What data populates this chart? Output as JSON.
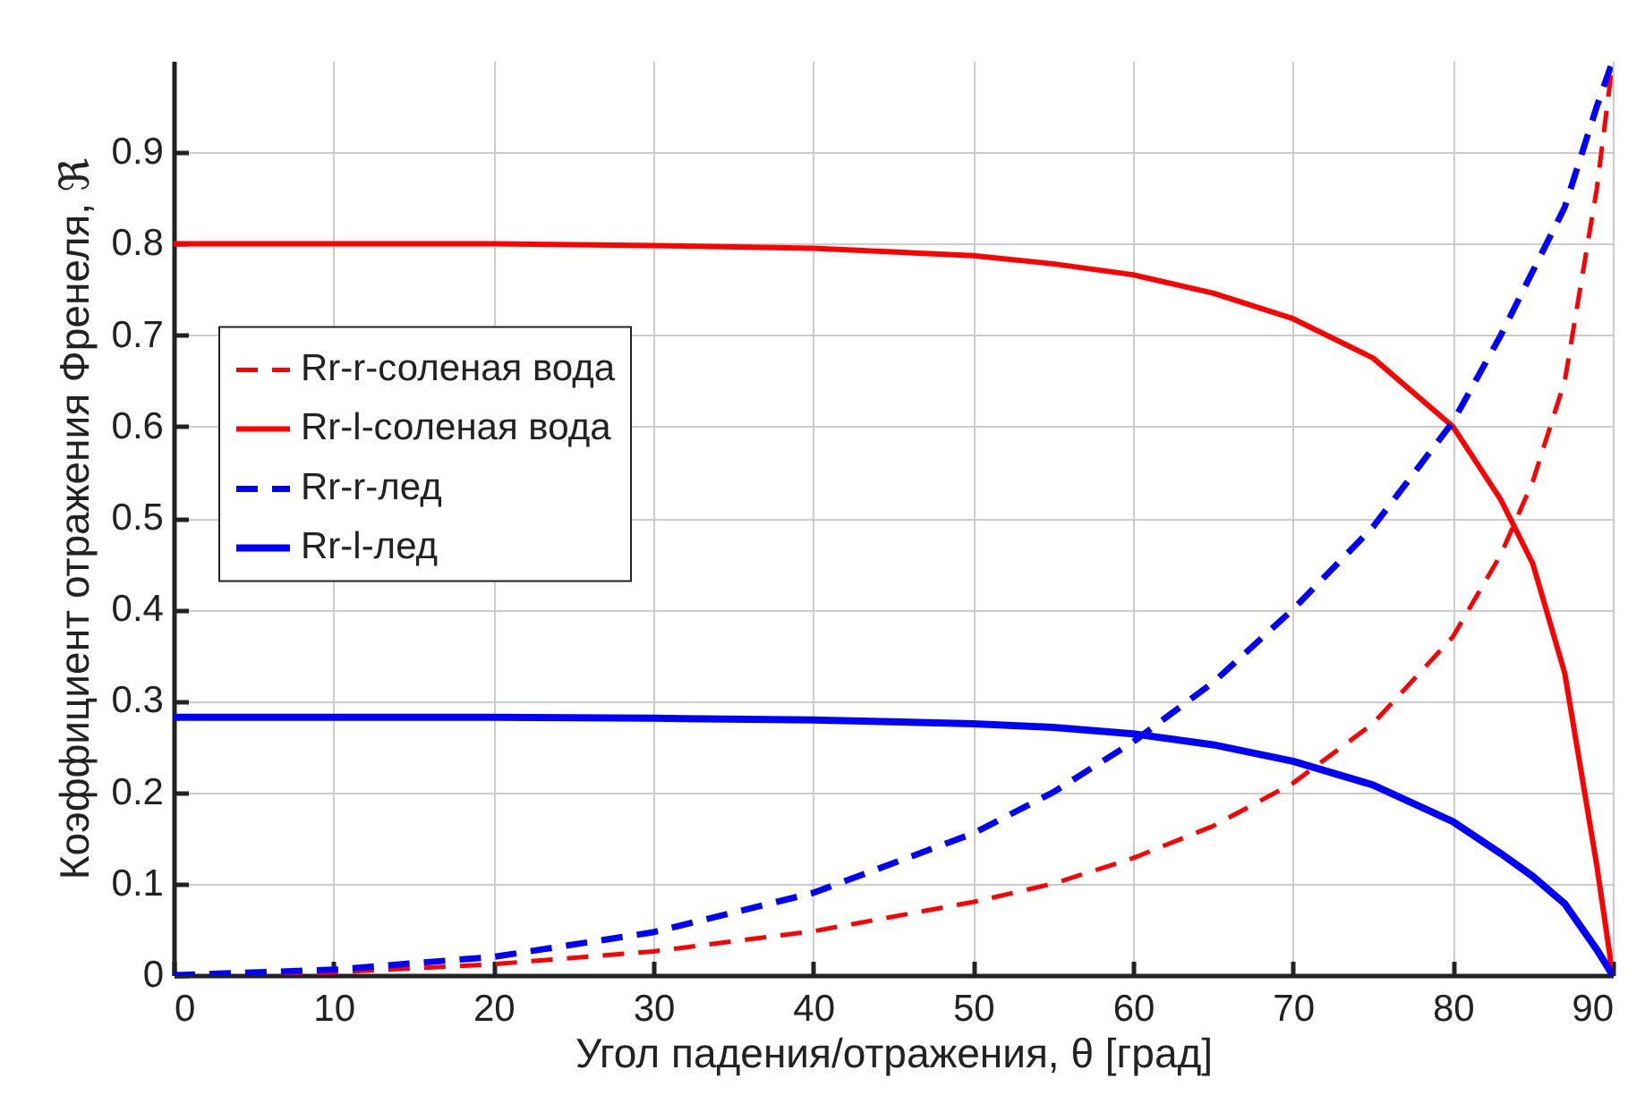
{
  "chart_data": {
    "type": "line",
    "xlabel": "Угол падения/отражения, θ [град]",
    "ylabel": "Коэффициент отражения Френеля, ℜ",
    "x": [
      0,
      10,
      20,
      30,
      40,
      50,
      55,
      60,
      65,
      70,
      75,
      80,
      83,
      85,
      87,
      89,
      90
    ],
    "series": [
      {
        "name": "Rr-r-соленая вода",
        "color": "#ff0000",
        "line_style": "dashed",
        "values": [
          0,
          0.003,
          0.012,
          0.026,
          0.048,
          0.08,
          0.1,
          0.128,
          0.163,
          0.21,
          0.275,
          0.37,
          0.46,
          0.54,
          0.65,
          0.86,
          1.0
        ]
      },
      {
        "name": "Rr-l-соленая вода",
        "color": "#ff0000",
        "line_style": "solid",
        "values": [
          0.8,
          0.8,
          0.8,
          0.798,
          0.795,
          0.787,
          0.778,
          0.766,
          0.746,
          0.718,
          0.675,
          0.6,
          0.52,
          0.45,
          0.33,
          0.12,
          0
        ]
      },
      {
        "name": "Rr-r-лед",
        "color": "#0000ff",
        "line_style": "dashed",
        "values": [
          0,
          0.006,
          0.02,
          0.047,
          0.09,
          0.155,
          0.2,
          0.255,
          0.32,
          0.4,
          0.49,
          0.605,
          0.7,
          0.77,
          0.84,
          0.95,
          1.0
        ]
      },
      {
        "name": "Rr-l-лед",
        "color": "#0000ff",
        "line_style": "solid",
        "values": [
          0.282,
          0.282,
          0.282,
          0.281,
          0.279,
          0.275,
          0.271,
          0.264,
          0.252,
          0.234,
          0.208,
          0.168,
          0.133,
          0.108,
          0.078,
          0.028,
          0
        ]
      }
    ],
    "xlim": [
      0,
      90
    ],
    "xticks": [
      0,
      10,
      20,
      30,
      40,
      50,
      60,
      70,
      80,
      90
    ],
    "ylim": [
      0,
      1
    ],
    "yticks": [
      0,
      0.1,
      0.2,
      0.3,
      0.4,
      0.5,
      0.6,
      0.7,
      0.8,
      0.9
    ],
    "grid": true,
    "legend": "left"
  }
}
